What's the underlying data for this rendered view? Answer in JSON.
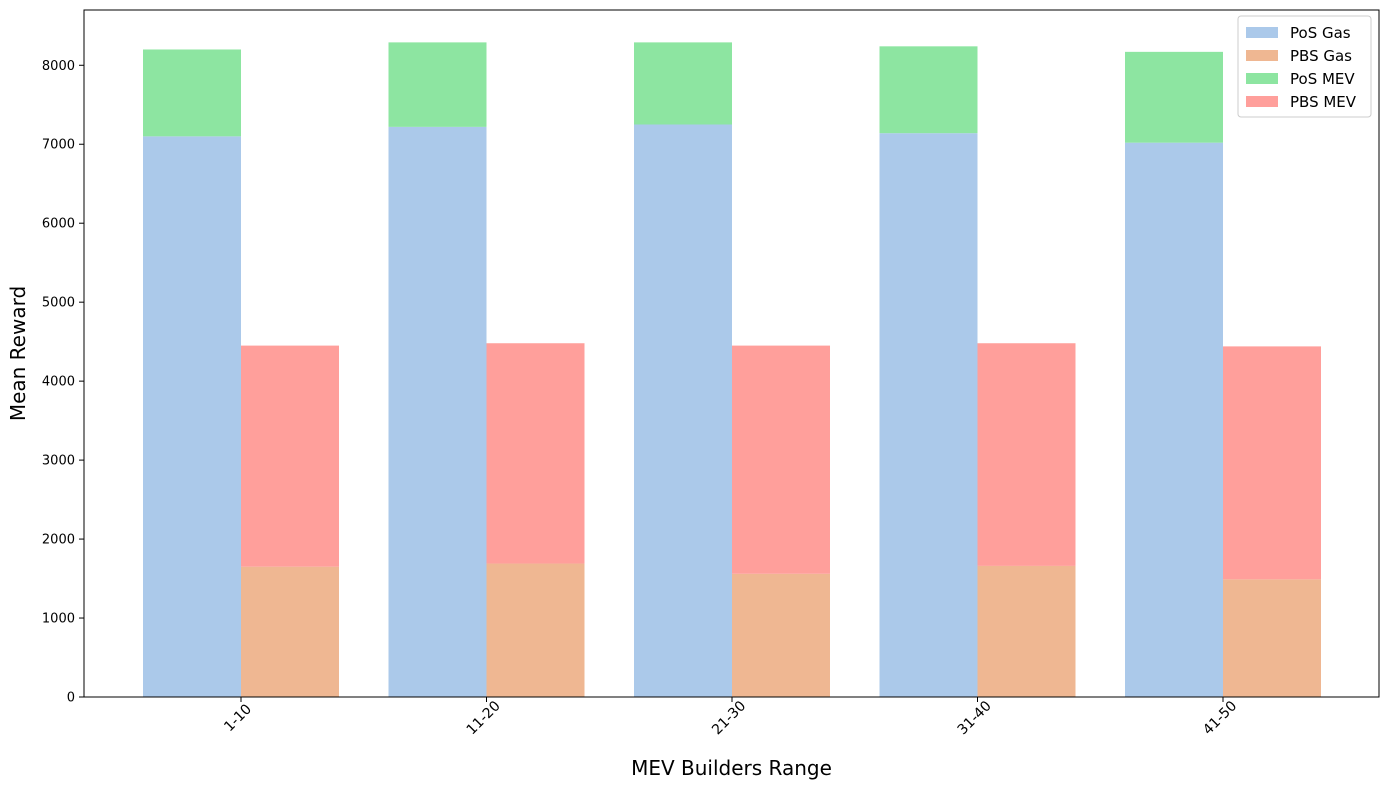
{
  "chart_data": {
    "type": "bar",
    "stacked": true,
    "categories": [
      "1-10",
      "11-20",
      "21-30",
      "31-40",
      "41-50"
    ],
    "xlabel": "MEV Builders Range",
    "ylabel": "Mean Reward",
    "ylim": [
      0,
      8700
    ],
    "yticks": [
      0,
      1000,
      2000,
      3000,
      4000,
      5000,
      6000,
      7000,
      8000
    ],
    "grid": false,
    "legend_position": "top-right",
    "groups": [
      {
        "key": "pos",
        "layers": [
          {
            "name": "PoS Gas",
            "color": "#abc9ea",
            "values": [
              7100,
              7220,
              7250,
              7140,
              7020
            ]
          },
          {
            "name": "PoS MEV",
            "color": "#8de5a1",
            "values": [
              1100,
              1070,
              1040,
              1100,
              1150
            ]
          }
        ]
      },
      {
        "key": "pbs",
        "layers": [
          {
            "name": "PBS Gas",
            "color": "#efb792",
            "values": [
              1650,
              1690,
              1560,
              1660,
              1490
            ]
          },
          {
            "name": "PBS MEV",
            "color": "#ff9f9b",
            "values": [
              2800,
              2790,
              2890,
              2820,
              2950
            ]
          }
        ]
      }
    ],
    "legend": [
      {
        "name": "PoS Gas",
        "color": "#abc9ea"
      },
      {
        "name": "PBS Gas",
        "color": "#efb792"
      },
      {
        "name": "PoS MEV",
        "color": "#8de5a1"
      },
      {
        "name": "PBS MEV",
        "color": "#ff9f9b"
      }
    ]
  }
}
